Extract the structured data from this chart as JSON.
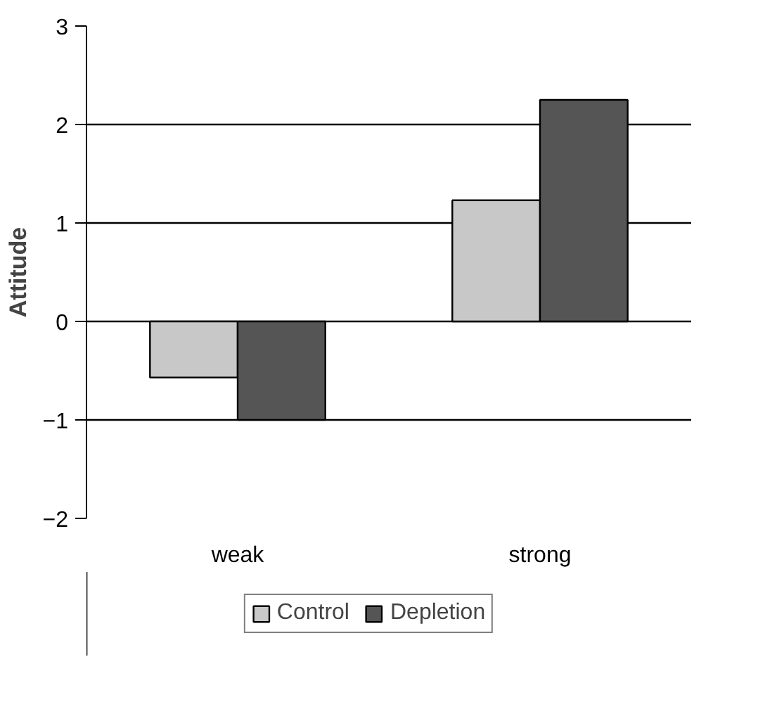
{
  "chart_data": {
    "type": "bar",
    "ylabel": "Attitude",
    "categories": [
      "weak",
      "strong"
    ],
    "series": [
      {
        "name": "Control",
        "color": "#c8c8c8",
        "values": [
          -0.57,
          1.23
        ]
      },
      {
        "name": "Depletion",
        "color": "#555555",
        "values": [
          -1.0,
          2.25
        ]
      }
    ],
    "ylim": [
      -2,
      3
    ],
    "yticks": [
      {
        "value": -2,
        "label": "−2"
      },
      {
        "value": -1,
        "label": "−1"
      },
      0,
      1,
      2,
      3
    ],
    "grid": "y",
    "legend": "bottom"
  }
}
